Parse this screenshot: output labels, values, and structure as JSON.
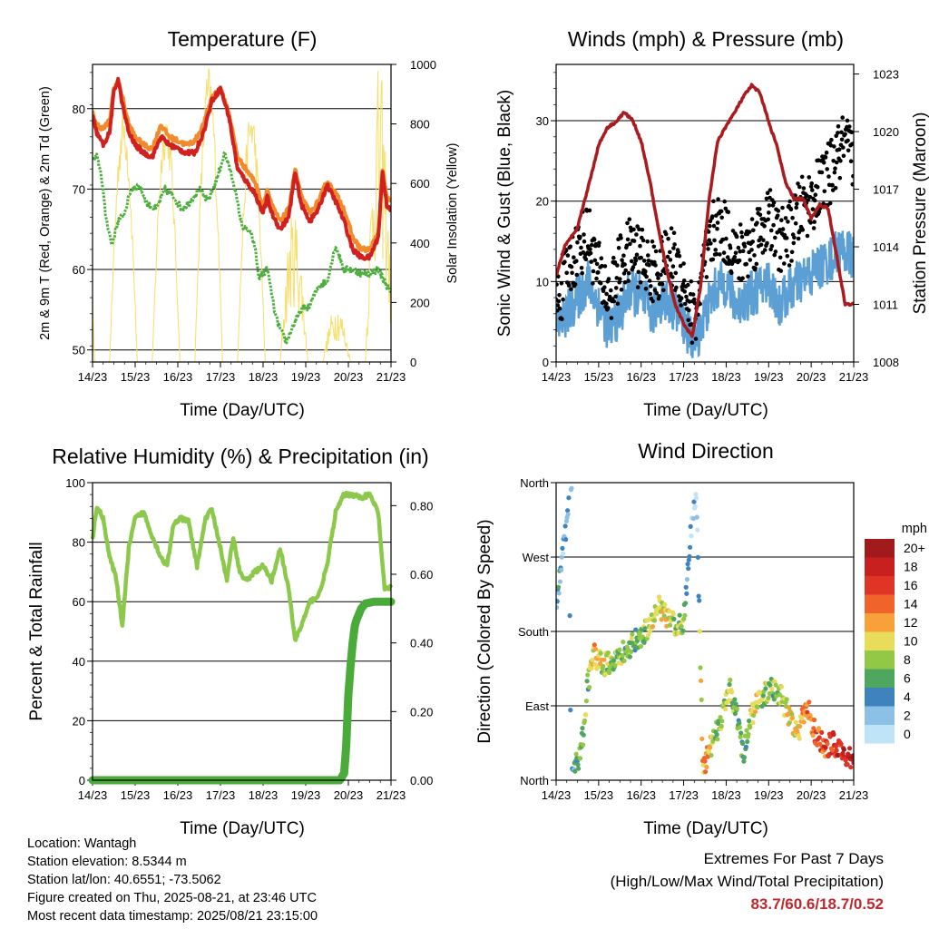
{
  "panels": {
    "temperature": {
      "title": "Temperature (F)",
      "ylabel_left": "2m & 9m T (Red, Orange) & 2m Td (Green)",
      "ylabel_right": "Solar Insolation (Yellow)",
      "xlabel": "Time (Day/UTC)"
    },
    "winds": {
      "title": "Winds (mph) & Pressure (mb)",
      "ylabel_left": "Sonic Wind & Gust (Blue, Black)",
      "ylabel_right": "Station Pressure (Maroon)",
      "xlabel": "Time (Day/UTC)"
    },
    "humidity": {
      "title": "Relative Humidity (%) & Precipitation (in)",
      "ylabel_left": "Percent & Total Rainfall",
      "xlabel": "Time (Day/UTC)"
    },
    "direction": {
      "title": "Wind Direction",
      "ylabel_left": "Direction (Colored By Speed)",
      "xlabel": "Time (Day/UTC)",
      "colorbar_title": "mph",
      "colorbar_labels": [
        "20+",
        "18",
        "16",
        "14",
        "12",
        "10",
        "8",
        "6",
        "4",
        "2",
        "0"
      ],
      "colorbar_colors": [
        "#a11a1c",
        "#c8201f",
        "#df3426",
        "#f0642c",
        "#f8a13a",
        "#e8dc5a",
        "#93c746",
        "#4fa65e",
        "#3f83be",
        "#8dc0e6",
        "#bfe3f7"
      ]
    }
  },
  "info": {
    "location": "Location: Wantagh",
    "elevation": "Station elevation: 8.5344 m",
    "latlon": "Station lat/lon: 40.6551; -73.5062",
    "created": "Figure created on Thu, 2025-08-21, at 23:46 UTC",
    "recent": "Most recent data timestamp: 2025/08/21 23:15:00"
  },
  "extremes": {
    "title": "Extremes For Past 7 Days",
    "subtitle": "(High/Low/Max Wind/Total Precipitation)",
    "values": "83.7/60.6/18.7/0.52"
  },
  "chart_data": [
    {
      "type": "line",
      "title": "Temperature (F)",
      "xlabel": "Time (Day/UTC)",
      "ylabel": "2m & 9m T (Red, Orange) & 2m Td (Green)",
      "ylabel_right": "Solar Insolation (Yellow)",
      "x_ticks": [
        "14/23",
        "15/23",
        "16/23",
        "17/23",
        "18/23",
        "19/23",
        "20/23",
        "21/23"
      ],
      "xlim": [
        0,
        7
      ],
      "ylim": [
        48.5,
        85.5
      ],
      "y_ticks": [
        50,
        60,
        70,
        80
      ],
      "ylim_right": [
        0,
        1000
      ],
      "y_ticks_right": [
        0,
        200,
        400,
        600,
        800,
        1000
      ],
      "grid": "horizontal",
      "series": [
        {
          "role": "t9m",
          "color": "#f08a2a",
          "axis": "left",
          "x": [
            0,
            0.1,
            0.25,
            0.4,
            0.5,
            0.6,
            0.7,
            0.85,
            1.0,
            1.2,
            1.4,
            1.6,
            1.8,
            2.0,
            2.2,
            2.4,
            2.6,
            2.8,
            3.0,
            3.2,
            3.4,
            3.6,
            3.8,
            4.0,
            4.1,
            4.2,
            4.4,
            4.6,
            4.75,
            4.9,
            5.1,
            5.3,
            5.5,
            5.7,
            5.9,
            6.1,
            6.3,
            6.5,
            6.7,
            6.8,
            6.9,
            7.0
          ],
          "y": [
            79.5,
            78,
            77.5,
            78.5,
            82.5,
            83.5,
            81.5,
            78,
            76.5,
            75.5,
            75,
            78,
            76.5,
            76,
            75.5,
            76,
            78,
            81.5,
            82.5,
            79.5,
            74,
            72.5,
            71,
            68,
            70,
            68,
            66,
            67.5,
            72.5,
            69,
            67,
            68.5,
            71,
            69.5,
            67.5,
            64,
            62.5,
            62.5,
            64.5,
            72.5,
            69,
            68.5
          ]
        },
        {
          "role": "t2m",
          "color": "#d0201f",
          "axis": "left",
          "x": [
            0,
            0.1,
            0.25,
            0.4,
            0.5,
            0.6,
            0.7,
            0.85,
            1.0,
            1.2,
            1.4,
            1.6,
            1.8,
            2.0,
            2.2,
            2.4,
            2.6,
            2.8,
            3.0,
            3.2,
            3.4,
            3.6,
            3.8,
            4.0,
            4.1,
            4.2,
            4.4,
            4.6,
            4.75,
            4.9,
            5.1,
            5.3,
            5.5,
            5.7,
            5.9,
            6.1,
            6.3,
            6.5,
            6.7,
            6.8,
            6.9,
            7.0
          ],
          "y": [
            79.0,
            77,
            75.5,
            77,
            82,
            83.7,
            80.5,
            77,
            75.5,
            74.5,
            74,
            76.5,
            75.5,
            75,
            74.5,
            74.5,
            77,
            81,
            82.5,
            79,
            72.5,
            71,
            69.5,
            67,
            69,
            67,
            65,
            66.5,
            72,
            68,
            66,
            67.5,
            70.5,
            68.5,
            66,
            62.5,
            61.5,
            61.5,
            64,
            72,
            68,
            67.5
          ]
        },
        {
          "role": "td2m",
          "color": "#4daf3c",
          "axis": "left",
          "x": [
            0,
            0.1,
            0.2,
            0.3,
            0.45,
            0.6,
            0.75,
            0.9,
            1.1,
            1.3,
            1.5,
            1.7,
            1.9,
            2.1,
            2.3,
            2.5,
            2.7,
            2.9,
            3.1,
            3.3,
            3.5,
            3.7,
            3.8,
            3.9,
            4.1,
            4.3,
            4.45,
            4.55,
            4.7,
            4.9,
            5.1,
            5.3,
            5.5,
            5.7,
            5.9,
            6.1,
            6.3,
            6.5,
            6.7,
            6.9,
            7.0
          ],
          "y": [
            73.5,
            74,
            72,
            67,
            63,
            66,
            67,
            70,
            70.5,
            68,
            67.5,
            70,
            69,
            67.5,
            68.5,
            70,
            68.5,
            71,
            74.5,
            71,
            65.5,
            64.5,
            63,
            59,
            60,
            54,
            52,
            51,
            53,
            55,
            55.5,
            58,
            58.5,
            63,
            60,
            60,
            59.5,
            59.5,
            60,
            58,
            57
          ]
        },
        {
          "role": "solar",
          "color": "#f6de6a",
          "axis": "right",
          "daily_peaks": [
            930,
            860,
            860,
            1000,
            870,
            520,
            200,
            1000
          ]
        }
      ]
    },
    {
      "type": "line",
      "title": "Winds (mph) & Pressure (mb)",
      "xlabel": "Time (Day/UTC)",
      "ylabel": "Sonic Wind & Gust (Blue, Black)",
      "ylabel_right": "Station Pressure (Maroon)",
      "x_ticks": [
        "14/23",
        "15/23",
        "16/23",
        "17/23",
        "18/23",
        "19/23",
        "20/23",
        "21/23"
      ],
      "xlim": [
        0,
        7
      ],
      "ylim": [
        0,
        37
      ],
      "y_ticks": [
        0,
        10,
        20,
        30
      ],
      "ylim_right": [
        1008,
        1023.5
      ],
      "y_ticks_right": [
        1008,
        1011,
        1014,
        1017,
        1020,
        1023
      ],
      "grid": "horizontal",
      "series": [
        {
          "role": "wind",
          "color": "#5b9fd4",
          "axis": "left",
          "x": [
            0,
            0.25,
            0.5,
            0.75,
            1.0,
            1.25,
            1.5,
            1.75,
            2.0,
            2.25,
            2.5,
            2.75,
            3.0,
            3.25,
            3.5,
            3.75,
            4.0,
            4.25,
            4.5,
            4.75,
            5.0,
            5.25,
            5.5,
            5.75,
            6.0,
            6.25,
            6.5,
            6.75,
            7.0
          ],
          "y": [
            4,
            6,
            8,
            10,
            7,
            4,
            6,
            9,
            8,
            6,
            8,
            7,
            5,
            2,
            6,
            9,
            10,
            7,
            8,
            9,
            10,
            7,
            9,
            10,
            11,
            12,
            13,
            14,
            13
          ]
        },
        {
          "role": "gust",
          "color": "#000000",
          "axis": "left",
          "x": [
            0,
            0.25,
            0.5,
            0.75,
            1.0,
            1.25,
            1.5,
            1.75,
            2.0,
            2.25,
            2.5,
            2.75,
            3.0,
            3.25,
            3.5,
            3.75,
            4.0,
            4.25,
            4.5,
            4.75,
            5.0,
            5.25,
            5.5,
            5.75,
            6.0,
            6.25,
            6.5,
            6.75,
            7.0
          ],
          "y": [
            7,
            11,
            14,
            16,
            11,
            8,
            12,
            14,
            13,
            11,
            12,
            13,
            10,
            5,
            12,
            17,
            16,
            13,
            14,
            16,
            18,
            15,
            16,
            19,
            20,
            22,
            24,
            27,
            25
          ]
        },
        {
          "role": "pressure",
          "color": "#a91b1f",
          "axis": "right",
          "x": [
            0,
            0.2,
            0.5,
            0.8,
            1.0,
            1.2,
            1.4,
            1.6,
            1.8,
            2.0,
            2.2,
            2.4,
            2.6,
            2.8,
            3.0,
            3.2,
            3.4,
            3.6,
            3.8,
            4.0,
            4.2,
            4.4,
            4.6,
            4.8,
            5.0,
            5.2,
            5.4,
            5.6,
            5.8,
            6.0,
            6.2,
            6.4,
            6.6,
            6.8,
            7.0
          ],
          "y": [
            1012.5,
            1014,
            1015,
            1017.5,
            1019.3,
            1020.2,
            1020.5,
            1021,
            1020.6,
            1019.5,
            1017.5,
            1015,
            1012.8,
            1011,
            1010,
            1009.3,
            1012,
            1016.5,
            1019.5,
            1020.3,
            1021,
            1021.8,
            1022.4,
            1022,
            1020.5,
            1019.2,
            1017.3,
            1016.5,
            1016.5,
            1015.5,
            1016.2,
            1016,
            1013.5,
            1011,
            1011
          ]
        }
      ]
    },
    {
      "type": "line",
      "title": "Relative Humidity (%) & Precipitation (in)",
      "xlabel": "Time (Day/UTC)",
      "ylabel": "Percent & Total Rainfall",
      "x_ticks": [
        "14/23",
        "15/23",
        "16/23",
        "17/23",
        "18/23",
        "19/23",
        "20/23",
        "21/23"
      ],
      "xlim": [
        0,
        7
      ],
      "ylim": [
        0,
        100
      ],
      "y_ticks": [
        0,
        20,
        40,
        60,
        80,
        100
      ],
      "ylim_right": [
        0,
        0.867
      ],
      "y_ticks_right": [
        0.0,
        0.2,
        0.4,
        0.6,
        0.8
      ],
      "grid": "horizontal",
      "series": [
        {
          "role": "rh",
          "color": "#8cc84b",
          "axis": "left",
          "x": [
            0,
            0.1,
            0.25,
            0.4,
            0.55,
            0.7,
            0.85,
            1.0,
            1.2,
            1.4,
            1.6,
            1.75,
            1.9,
            2.05,
            2.25,
            2.45,
            2.65,
            2.8,
            3.0,
            3.15,
            3.3,
            3.45,
            3.6,
            3.8,
            4.0,
            4.2,
            4.4,
            4.6,
            4.75,
            4.9,
            5.1,
            5.3,
            5.5,
            5.7,
            5.9,
            6.1,
            6.3,
            6.5,
            6.7,
            6.85,
            7.0
          ],
          "y": [
            81,
            92,
            88,
            75,
            68,
            52,
            78,
            88,
            90,
            82,
            75,
            72,
            86,
            88,
            87,
            72,
            88,
            91,
            78,
            67,
            82,
            70,
            67,
            70,
            72,
            67,
            78,
            64,
            47,
            52,
            60,
            62,
            72,
            90,
            96,
            96,
            95,
            96,
            90,
            64,
            65
          ]
        },
        {
          "role": "precip",
          "color": "#4aab3b",
          "axis": "right",
          "x": [
            0,
            5.8,
            5.9,
            5.95,
            6.0,
            6.05,
            6.1,
            6.15,
            6.2,
            6.3,
            6.4,
            6.6,
            6.8,
            7.0
          ],
          "y": [
            0.0,
            0.0,
            0.02,
            0.1,
            0.25,
            0.33,
            0.4,
            0.45,
            0.47,
            0.5,
            0.515,
            0.52,
            0.52,
            0.52
          ]
        }
      ]
    },
    {
      "type": "scatter",
      "title": "Wind Direction",
      "xlabel": "Time (Day/UTC)",
      "ylabel": "Direction (Colored By Speed)",
      "x_ticks": [
        "14/23",
        "15/23",
        "16/23",
        "17/23",
        "18/23",
        "19/23",
        "20/23",
        "21/23"
      ],
      "xlim": [
        0,
        7
      ],
      "ylim": [
        0,
        360
      ],
      "y_ticks": [
        "North",
        "East",
        "South",
        "West",
        "North"
      ],
      "grid": "horizontal",
      "color_scale": {
        "title": "mph",
        "min": 0,
        "max": 20
      },
      "series": [
        {
          "role": "direction_track",
          "x": [
            0.0,
            0.1,
            0.2,
            0.3,
            0.35,
            0.45,
            0.55,
            0.65,
            0.75,
            0.9,
            1.1,
            1.3,
            1.5,
            1.7,
            1.9,
            2.1,
            2.3,
            2.45,
            2.6,
            2.8,
            3.0,
            3.1,
            3.2,
            3.3,
            3.45,
            3.6,
            3.75,
            3.9,
            4.1,
            4.25,
            4.4,
            4.55,
            4.7,
            4.9,
            5.1,
            5.3,
            5.5,
            5.7,
            5.9,
            6.1,
            6.3,
            6.5,
            6.7,
            6.9,
            7.0
          ],
          "y": [
            210,
            250,
            290,
            340,
            5,
            15,
            30,
            60,
            120,
            150,
            140,
            145,
            150,
            160,
            170,
            180,
            200,
            210,
            200,
            185,
            190,
            260,
            320,
            350,
            15,
            35,
            55,
            80,
            110,
            75,
            30,
            70,
            95,
            105,
            110,
            100,
            75,
            60,
            90,
            55,
            40,
            45,
            35,
            25,
            20
          ],
          "speed": [
            5,
            4,
            3,
            3,
            4,
            6,
            8,
            10,
            8,
            12,
            10,
            9,
            9,
            8,
            7,
            10,
            11,
            10,
            11,
            10,
            9,
            4,
            2,
            2,
            14,
            12,
            8,
            10,
            9,
            8,
            6,
            10,
            11,
            9,
            8,
            10,
            11,
            12,
            14,
            15,
            16,
            17,
            18,
            19,
            20
          ]
        }
      ]
    }
  ]
}
